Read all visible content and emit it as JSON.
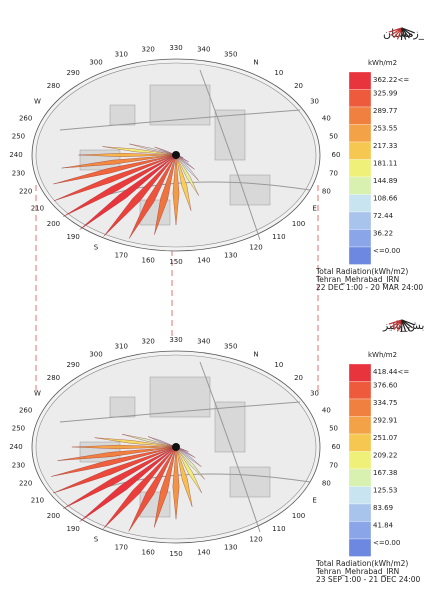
{
  "compass": [
    "N",
    "10",
    "20",
    "30",
    "40",
    "50",
    "60",
    "70",
    "80",
    "E",
    "100",
    "110",
    "120",
    "130",
    "140",
    "150",
    "160",
    "170",
    "S",
    "190",
    "200",
    "210",
    "220",
    "230",
    "240",
    "250",
    "260",
    "W",
    "280",
    "290",
    "300",
    "310",
    "320",
    "330",
    "340",
    "350"
  ],
  "legend_colors": [
    "#e8343c",
    "#ee5a3c",
    "#f08040",
    "#f4a248",
    "#f6c852",
    "#eef07a",
    "#d8f0b0",
    "#c8e4f0",
    "#a8c4ec",
    "#8aa6e8",
    "#6c88e0"
  ],
  "panels": [
    {
      "title": "گلنابش_زمستان",
      "legend": {
        "unit": "kWh/m2",
        "labels": [
          "362.22<=",
          "325.99",
          "289.77",
          "253.55",
          "217.33",
          "181.11",
          "144.89",
          "108.66",
          "72.44",
          "36.22",
          "<=0.00"
        ]
      },
      "footer": [
        "Total Radiation(kWh/m2)",
        "Tehran_Mehrabad_IRN",
        "22 DEC 1:00 - 20 MAR 24:00"
      ],
      "rose": {
        "directions": [
          90,
          100,
          110,
          120,
          130,
          140,
          150,
          160,
          170,
          180,
          190,
          200,
          210,
          220,
          230,
          240,
          250,
          260,
          270
        ],
        "values": [
          20,
          40,
          70,
          110,
          160,
          210,
          260,
          300,
          330,
          350,
          362,
          355,
          340,
          315,
          280,
          235,
          180,
          120,
          60
        ]
      }
    },
    {
      "title": "گلنابش_پائیز",
      "legend": {
        "unit": "kWh/m2",
        "labels": [
          "418.44<=",
          "376.60",
          "334.75",
          "292.91",
          "251.07",
          "209.22",
          "167.38",
          "125.53",
          "83.69",
          "41.84",
          "<=0.00"
        ]
      },
      "footer": [
        "Total Radiation(kWh/m2)",
        "Tehran_Mehrabad_IRN",
        "23 SEP 1:00 - 21 DEC 24:00"
      ],
      "rose": {
        "directions": [
          90,
          100,
          110,
          120,
          130,
          140,
          150,
          160,
          170,
          180,
          190,
          200,
          210,
          220,
          230,
          240,
          250,
          260,
          270
        ],
        "values": [
          40,
          70,
          110,
          160,
          210,
          260,
          310,
          350,
          385,
          405,
          418,
          410,
          395,
          370,
          335,
          290,
          230,
          160,
          90
        ]
      }
    }
  ]
}
